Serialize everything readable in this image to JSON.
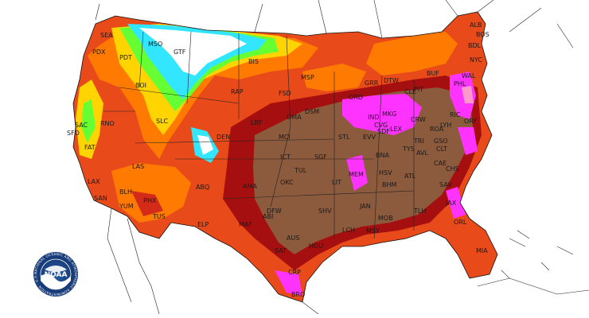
{
  "map": {
    "colors": {
      "cold_white": "#ffffff",
      "cyan": "#33e6ff",
      "green": "#66ff33",
      "yellow": "#ffd400",
      "orange": "#ff7a00",
      "red_orange": "#e84a1a",
      "red": "#d42a1a",
      "dark_red": "#a60f0f",
      "brown": "#8c5a3c",
      "magenta": "#ff33ff",
      "pink": "#ff99cc"
    },
    "cities": [
      "SEA",
      "PDX",
      "PDT",
      "GTF",
      "BIS",
      "MSP",
      "RAP",
      "SLC",
      "FSD",
      "DEN",
      "LBF",
      "OMA",
      "DSM",
      "MCI",
      "STL",
      "IND",
      "ORD",
      "GRR",
      "DTW",
      "BUF",
      "PIT",
      "CLE",
      "MKG",
      "CVG",
      "LEX",
      "CRW",
      "SDF",
      "EVV",
      "BNA",
      "TYS",
      "GSO",
      "RIC",
      "ORF",
      "WAL",
      "LYH",
      "ROA",
      "TRI",
      "AVL",
      "CLT",
      "CHS",
      "CAE",
      "SAV",
      "JAX",
      "TLH",
      "ATL",
      "HSV",
      "BHM",
      "MEM",
      "LIT",
      "SGF",
      "ICT",
      "TUL",
      "OKC",
      "DFW",
      "AMA",
      "ABQ",
      "PHX",
      "TUS",
      "ELP",
      "MAF",
      "ABI",
      "SHV",
      "JAN",
      "MOB",
      "MSY",
      "LCH",
      "HOU",
      "AUS",
      "SAT",
      "CRP",
      "BRO",
      "ORL",
      "MIA",
      "SFO",
      "SAC",
      "FAT",
      "LAX",
      "SAN",
      "YUM",
      "BLH",
      "LAS",
      "RNO",
      "BOI",
      "MSO",
      "NYC",
      "PHL",
      "BOS",
      "BDL",
      "ALB"
    ],
    "logo": {
      "acronym": "NOAA",
      "ring_text": "NATIONAL OCEANIC AND ATMOSPHERIC ADMINISTRATION · U.S. DEPARTMENT OF COMMERCE"
    }
  }
}
